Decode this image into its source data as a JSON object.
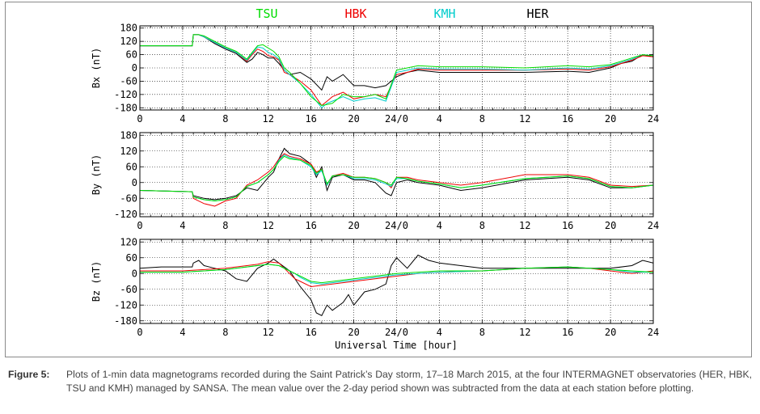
{
  "legend": [
    {
      "name": "TSU",
      "color": "#00dd00"
    },
    {
      "name": "HBK",
      "color": "#ee0000"
    },
    {
      "name": "KMH",
      "color": "#00cccc"
    },
    {
      "name": "HER",
      "color": "#000000"
    }
  ],
  "xlabel": "Universal Time [hour]",
  "xtick_labels": [
    "0",
    "4",
    "8",
    "12",
    "16",
    "20",
    "24/0",
    "4",
    "8",
    "12",
    "16",
    "20",
    "24"
  ],
  "caption": {
    "label": "Figure 5:",
    "text": "Plots of 1-min data magnetograms recorded during the Saint Patrick’s Day storm, 17–18 March 2015, at the four INTERMAGNET observatories (HER, HBK, TSU and KMH) managed by SANSA. The mean value over the 2-day period shown was subtracted from the data at each station before plotting."
  },
  "chart_data": [
    {
      "type": "line",
      "ylabel": "Bx (nT)",
      "ylim": [
        -190,
        190
      ],
      "yticks": [
        180,
        120,
        60,
        0,
        -60,
        -120,
        -180
      ],
      "x_range_hours": [
        0,
        48
      ],
      "grid": true,
      "series": [
        {
          "name": "HER",
          "color": "#000000",
          "x": [
            0,
            4.9,
            5,
            5.5,
            6,
            7,
            8,
            9,
            10,
            10.5,
            11,
            11.5,
            12,
            12.5,
            13,
            13.5,
            14,
            15,
            16,
            17,
            17.5,
            18,
            19,
            20,
            21,
            22,
            23,
            24,
            25,
            26,
            28,
            32,
            36,
            40,
            42,
            44,
            45,
            46,
            47,
            48
          ],
          "y": [
            100,
            100,
            150,
            150,
            140,
            110,
            85,
            65,
            25,
            40,
            70,
            60,
            45,
            45,
            20,
            -10,
            -30,
            -20,
            -50,
            -100,
            -40,
            -60,
            -30,
            -80,
            -80,
            -90,
            -80,
            -40,
            -20,
            -10,
            -20,
            -20,
            -20,
            -15,
            -20,
            0,
            20,
            30,
            60,
            50
          ]
        },
        {
          "name": "HBK",
          "color": "#ee0000",
          "x": [
            0,
            4.9,
            5,
            5.5,
            6,
            7,
            8,
            9,
            10,
            10.5,
            11,
            11.5,
            12,
            12.5,
            13,
            13.5,
            14,
            15,
            16,
            17,
            17.5,
            18,
            19,
            20,
            21,
            22,
            23,
            24,
            25,
            26,
            28,
            32,
            36,
            40,
            42,
            44,
            45,
            46,
            47,
            48
          ],
          "y": [
            100,
            100,
            150,
            150,
            140,
            115,
            90,
            70,
            30,
            60,
            85,
            75,
            55,
            50,
            35,
            -20,
            -30,
            -60,
            -100,
            -170,
            -150,
            -130,
            -110,
            -140,
            -130,
            -120,
            -130,
            -30,
            -20,
            -5,
            -10,
            -10,
            -10,
            -5,
            -10,
            5,
            20,
            35,
            55,
            50
          ]
        },
        {
          "name": "KMH",
          "color": "#00cccc",
          "x": [
            0,
            4.9,
            5,
            5.5,
            6,
            7,
            8,
            9,
            10,
            10.5,
            11,
            11.5,
            12,
            12.5,
            13,
            13.5,
            14,
            15,
            16,
            17,
            17.5,
            18,
            19,
            20,
            21,
            22,
            23,
            24,
            25,
            26,
            28,
            32,
            36,
            40,
            42,
            44,
            45,
            46,
            47,
            48
          ],
          "y": [
            100,
            100,
            150,
            150,
            140,
            115,
            90,
            70,
            35,
            65,
            95,
            90,
            70,
            60,
            40,
            -10,
            -30,
            -70,
            -120,
            -180,
            -160,
            -150,
            -130,
            -150,
            -140,
            -135,
            -150,
            -20,
            -10,
            0,
            -5,
            -5,
            -10,
            0,
            -5,
            10,
            25,
            40,
            60,
            55
          ]
        },
        {
          "name": "TSU",
          "color": "#00dd00",
          "x": [
            0,
            4.9,
            5,
            5.5,
            6,
            7,
            8,
            9,
            10,
            10.5,
            11,
            11.5,
            12,
            12.5,
            13,
            13.5,
            14,
            15,
            16,
            17,
            17.5,
            18,
            19,
            20,
            21,
            22,
            23,
            24,
            25,
            26,
            28,
            32,
            36,
            40,
            42,
            44,
            45,
            46,
            47,
            48
          ],
          "y": [
            100,
            100,
            150,
            150,
            145,
            120,
            95,
            75,
            40,
            70,
            100,
            105,
            90,
            75,
            50,
            0,
            -20,
            -70,
            -130,
            -170,
            -165,
            -160,
            -120,
            -130,
            -130,
            -120,
            -140,
            -10,
            0,
            10,
            5,
            5,
            0,
            10,
            5,
            15,
            30,
            45,
            60,
            55
          ]
        }
      ]
    },
    {
      "type": "line",
      "ylabel": "By (nT)",
      "ylim": [
        -130,
        190
      ],
      "yticks": [
        180,
        120,
        60,
        0,
        -60,
        -120
      ],
      "x_range_hours": [
        0,
        48
      ],
      "grid": true,
      "series": [
        {
          "name": "HER",
          "color": "#000000",
          "x": [
            0,
            4.9,
            5,
            6,
            7,
            8,
            9,
            10,
            11,
            12,
            12.5,
            13,
            13.5,
            14,
            15,
            16,
            16.5,
            17,
            17.5,
            18,
            19,
            20,
            21,
            22,
            23,
            23.5,
            24,
            25,
            26,
            28,
            30,
            32,
            36,
            40,
            42,
            44,
            46,
            48
          ],
          "y": [
            -30,
            -35,
            -50,
            -60,
            -65,
            -60,
            -50,
            -20,
            -30,
            20,
            40,
            90,
            130,
            110,
            100,
            70,
            20,
            60,
            -30,
            20,
            30,
            10,
            10,
            0,
            -40,
            -50,
            0,
            10,
            0,
            -10,
            -30,
            -20,
            10,
            20,
            10,
            -20,
            -20,
            -10
          ]
        },
        {
          "name": "HBK",
          "color": "#ee0000",
          "x": [
            0,
            4.9,
            5,
            6,
            7,
            8,
            9,
            10,
            11,
            12,
            12.5,
            13,
            13.5,
            14,
            15,
            16,
            16.5,
            17,
            17.5,
            18,
            19,
            20,
            21,
            22,
            23,
            23.5,
            24,
            25,
            26,
            28,
            30,
            32,
            36,
            40,
            42,
            44,
            46,
            48
          ],
          "y": [
            -30,
            -35,
            -60,
            -80,
            -90,
            -70,
            -60,
            -10,
            10,
            40,
            60,
            90,
            110,
            100,
            90,
            70,
            40,
            50,
            -10,
            25,
            35,
            20,
            20,
            15,
            0,
            -20,
            20,
            20,
            10,
            0,
            -10,
            0,
            30,
            30,
            20,
            -10,
            -15,
            -10
          ]
        },
        {
          "name": "KMH",
          "color": "#00cccc",
          "x": [
            0,
            4.9,
            5,
            6,
            7,
            8,
            9,
            10,
            11,
            12,
            12.5,
            13,
            13.5,
            14,
            15,
            16,
            16.5,
            17,
            17.5,
            18,
            19,
            20,
            21,
            22,
            23,
            23.5,
            24,
            25,
            26,
            28,
            30,
            32,
            36,
            40,
            42,
            44,
            46,
            48
          ],
          "y": [
            -30,
            -35,
            -55,
            -65,
            -70,
            -65,
            -55,
            -15,
            0,
            30,
            50,
            85,
            105,
            95,
            85,
            60,
            30,
            45,
            -10,
            25,
            30,
            15,
            15,
            10,
            -5,
            -15,
            15,
            15,
            5,
            -5,
            -20,
            -10,
            15,
            25,
            15,
            -15,
            -20,
            -10
          ]
        },
        {
          "name": "TSU",
          "color": "#00dd00",
          "x": [
            0,
            4.9,
            5,
            6,
            7,
            8,
            9,
            10,
            11,
            12,
            12.5,
            13,
            13.5,
            14,
            15,
            16,
            16.5,
            17,
            17.5,
            18,
            19,
            20,
            21,
            22,
            23,
            23.5,
            24,
            25,
            26,
            28,
            30,
            32,
            36,
            40,
            42,
            44,
            46,
            48
          ],
          "y": [
            -30,
            -35,
            -55,
            -65,
            -70,
            -65,
            -55,
            -15,
            0,
            30,
            50,
            80,
            100,
            90,
            85,
            65,
            35,
            50,
            -5,
            25,
            30,
            20,
            20,
            15,
            0,
            -10,
            20,
            15,
            5,
            -5,
            -20,
            -10,
            15,
            25,
            15,
            -15,
            -20,
            -10
          ]
        }
      ]
    },
    {
      "type": "line",
      "ylabel": "Bz (nT)",
      "ylim": [
        -190,
        130
      ],
      "yticks": [
        120,
        60,
        0,
        -60,
        -120,
        -180
      ],
      "x_range_hours": [
        0,
        48
      ],
      "grid": true,
      "series": [
        {
          "name": "HER",
          "color": "#000000",
          "x": [
            0,
            2,
            4,
            4.9,
            5,
            5.5,
            6,
            7,
            8,
            9,
            10,
            11,
            12,
            12.5,
            13,
            14,
            15,
            16,
            16.5,
            17,
            17.5,
            18,
            19,
            19.5,
            20,
            21,
            22,
            23,
            23.5,
            24,
            25,
            26,
            27,
            28,
            30,
            32,
            36,
            40,
            42,
            44,
            46,
            47,
            48
          ],
          "y": [
            20,
            25,
            25,
            25,
            40,
            50,
            30,
            20,
            10,
            -20,
            -30,
            20,
            40,
            55,
            40,
            10,
            -50,
            -100,
            -150,
            -160,
            -120,
            -140,
            -110,
            -80,
            -120,
            -70,
            -60,
            -40,
            30,
            60,
            20,
            70,
            50,
            40,
            30,
            20,
            20,
            20,
            20,
            20,
            30,
            50,
            40
          ]
        },
        {
          "name": "HBK",
          "color": "#ee0000",
          "x": [
            0,
            2,
            4,
            6,
            8,
            10,
            11,
            12,
            13,
            14,
            14.5,
            15,
            16,
            17,
            18,
            20,
            22,
            24,
            26,
            28,
            32,
            36,
            40,
            42,
            44,
            46,
            48
          ],
          "y": [
            10,
            10,
            10,
            15,
            20,
            30,
            35,
            45,
            40,
            0,
            -20,
            -30,
            -50,
            -45,
            -40,
            -30,
            -20,
            -10,
            0,
            5,
            10,
            20,
            25,
            20,
            10,
            0,
            10
          ]
        },
        {
          "name": "KMH",
          "color": "#00cccc",
          "x": [
            0,
            2,
            4,
            6,
            8,
            10,
            11,
            12,
            13,
            14,
            14.5,
            15,
            16,
            17,
            18,
            20,
            22,
            24,
            26,
            28,
            32,
            36,
            40,
            42,
            44,
            46,
            48
          ],
          "y": [
            5,
            5,
            5,
            10,
            15,
            25,
            30,
            35,
            30,
            10,
            0,
            -15,
            -35,
            -40,
            -35,
            -25,
            -15,
            -5,
            0,
            5,
            10,
            20,
            25,
            20,
            15,
            5,
            5
          ]
        },
        {
          "name": "TSU",
          "color": "#00dd00",
          "x": [
            0,
            2,
            4,
            6,
            8,
            10,
            11,
            12,
            13,
            14,
            14.5,
            15,
            16,
            17,
            18,
            20,
            22,
            24,
            26,
            28,
            32,
            36,
            40,
            42,
            44,
            46,
            48
          ],
          "y": [
            5,
            5,
            5,
            10,
            15,
            25,
            30,
            35,
            30,
            10,
            0,
            -10,
            -30,
            -35,
            -30,
            -20,
            -10,
            0,
            5,
            10,
            10,
            20,
            25,
            20,
            15,
            10,
            5
          ]
        }
      ]
    }
  ]
}
